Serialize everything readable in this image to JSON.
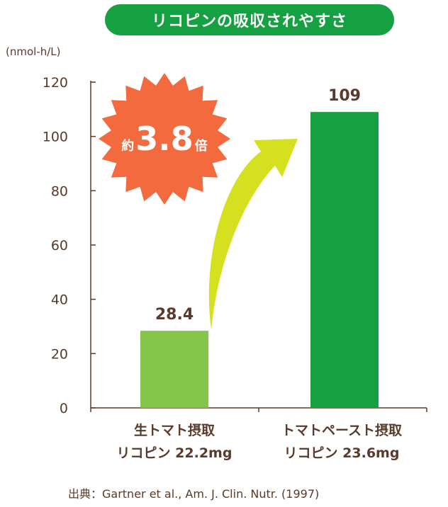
{
  "title": "リコピンの吸収されやすさ",
  "unit_label": "(nmol-h/L)",
  "badge": {
    "prefix": "約",
    "value": "3.8",
    "suffix": "倍",
    "color": "#f26a3d"
  },
  "source": "出典：Gartner et al.,  Am. J. Clin. Nutr. (1997)",
  "colors": {
    "title_bg": "#15a042",
    "bar_1": "#84c54a",
    "bar_2": "#15a042",
    "arrow": "#d5e01f",
    "text": "#5a3a2a",
    "axis": "#5a3a2a"
  },
  "chart_data": {
    "type": "bar",
    "title": "リコピンの吸収されやすさ",
    "ylabel": "(nmol-h/L)",
    "xlabel": "",
    "ylim": [
      0,
      120
    ],
    "yticks": [
      0,
      20,
      40,
      60,
      80,
      100,
      120
    ],
    "grid": false,
    "categories": [
      {
        "line1": "生トマト摂取",
        "line2": "リコピン 22.2mg"
      },
      {
        "line1": "トマトペースト摂取",
        "line2": "リコピン 23.6mg"
      }
    ],
    "values": [
      28.4,
      109
    ],
    "value_labels": [
      "28.4",
      "109"
    ]
  }
}
